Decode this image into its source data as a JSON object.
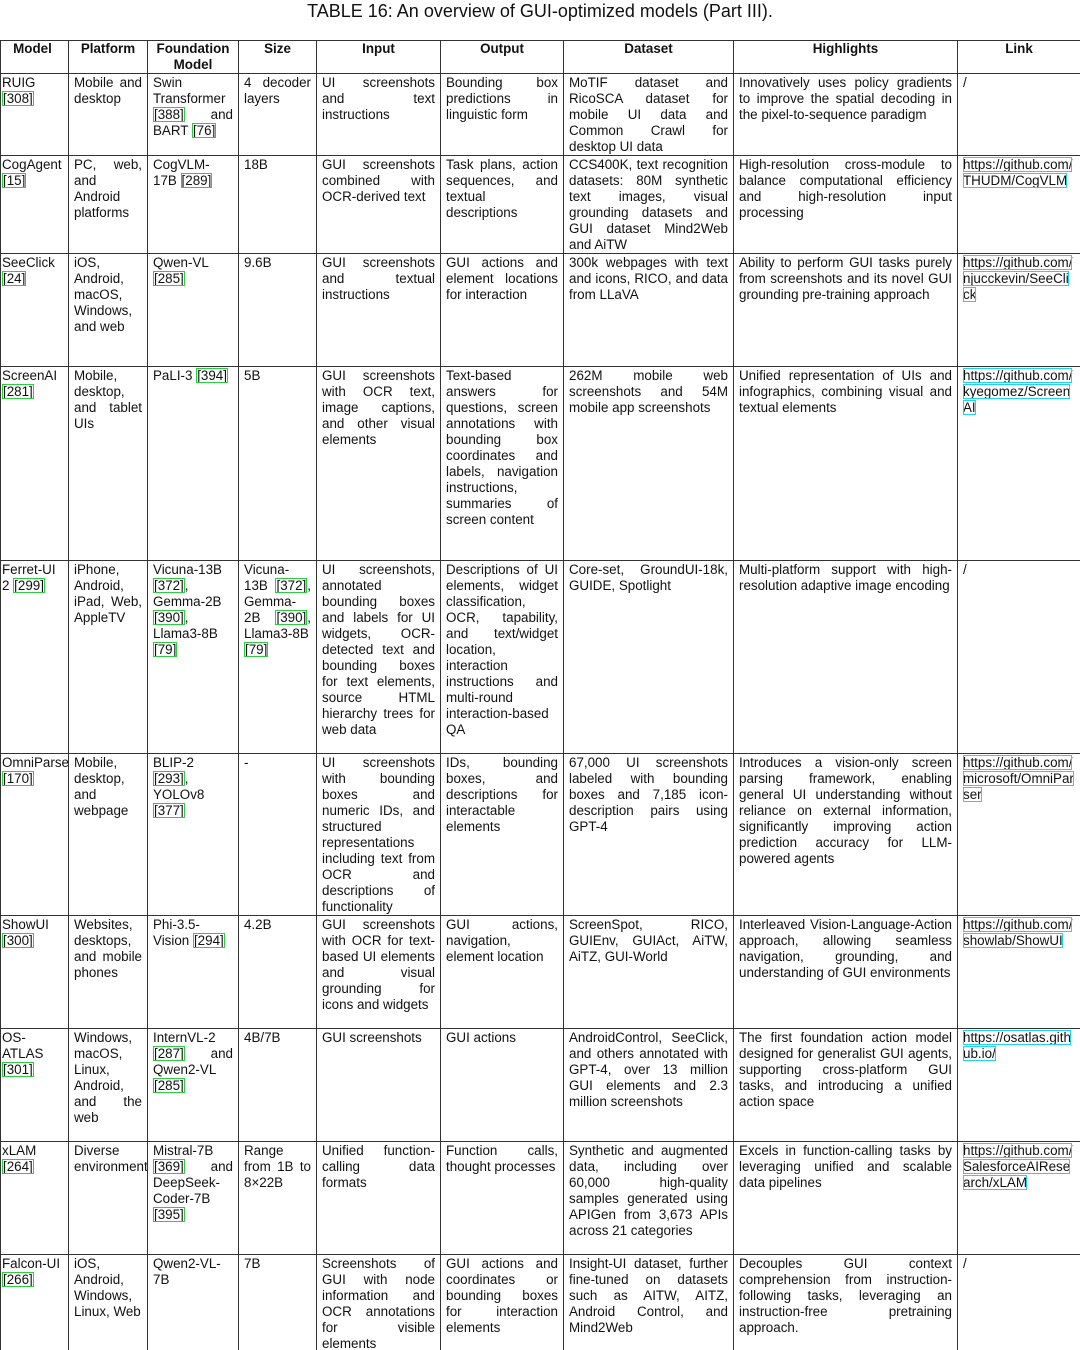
{
  "title": "TABLE 16: An overview of GUI-optimized models (Part III).",
  "table": {
    "columns": [
      "Model",
      "Platform",
      "Foundation Model",
      "Size",
      "Input",
      "Output",
      "Dataset",
      "Highlights",
      "Link"
    ],
    "rows": [
      [
        "RUIG [308]",
        "Mobile and desktop",
        "Swin Transformer [388] and BART [76]",
        "4 decoder layers",
        "UI screenshots and text instructions",
        "Bounding box predictions in linguistic form",
        "MoTIF dataset and RicoSCA dataset for mobile UI data and Common Crawl for desktop UI data",
        "Innovatively uses policy gradients to improve the spatial decoding in the pixel-to-sequence paradigm",
        "/"
      ],
      [
        "CogAgent [15]",
        "PC, web, and Android platforms",
        "CogVLM-17B [289]",
        "18B",
        "GUI screenshots combined with OCR-derived text",
        "Task plans, action sequences, and textual descriptions",
        "CCS400K, text recognition datasets: 80M synthetic text images, visual grounding datasets and GUI dataset Mind2Web and AiTW",
        "High-resolution cross-module to balance computational efficiency and high-resolution input processing",
        "https://github.com/THUDM/CogVLM"
      ],
      [
        "SeeClick [24]",
        "iOS, Android, macOS, Windows, and web",
        "Qwen-VL [285]",
        "9.6B",
        "GUI screenshots and textual instructions",
        "GUI actions and element locations for interaction",
        "300k webpages with text and icons, RICO, and data from LLaVA",
        "Ability to perform GUI tasks purely from screenshots and its novel GUI grounding pre-training approach",
        "https://github.com/njucckevin/SeeClick"
      ],
      [
        "ScreenAI [281]",
        "Mobile, desktop, and tablet UIs",
        "PaLI-3 [394]",
        "5B",
        "GUI screenshots with OCR text, image captions, and other visual elements",
        "Text-based answers for questions, screen annotations with bounding box coordinates and labels, navigation instructions, summaries of screen content",
        "262M mobile web screenshots and 54M mobile app screenshots",
        "Unified representation of UIs and infographics, combining visual and textual elements",
        "https://github.com/kyegomez/ScreenAI"
      ],
      [
        "Ferret-UI 2 [299]",
        "iPhone, Android, iPad, Web, AppleTV",
        "Vicuna-13B [372], Gemma-2B [390], Llama3-8B [79]",
        "Vicuna-13B [372], Gemma-2B [390], Llama3-8B [79]",
        "UI screenshots, annotated bounding boxes and labels for UI widgets, OCR-detected text and bounding boxes for text elements, source HTML hierarchy trees for web data",
        "Descriptions of UI elements, widget classification, OCR, tapability, and text/widget location, interaction instructions and multi-round interaction-based QA",
        "Core-set, GroundUI-18k, GUIDE, Spotlight",
        "Multi-platform support with high-resolution adaptive image encoding",
        "/"
      ],
      [
        "OmniParser [170]",
        "Mobile, desktop, and webpage",
        "BLIP-2 [293], YOLOv8 [377]",
        "-",
        "UI screenshots with bounding boxes and numeric IDs, and structured representations including text from OCR and descriptions of functionality",
        "IDs, bounding boxes, and descriptions for interactable elements",
        "67,000 UI screenshots labeled with bounding boxes and 7,185 icon-description pairs using GPT-4",
        "Introduces a vision-only screen parsing framework, enabling general UI understanding without reliance on external information, significantly improving action prediction accuracy for LLM-powered agents",
        "https://github.com/microsoft/OmniParser"
      ],
      [
        "ShowUI [300]",
        "Websites, desktops, and mobile phones",
        "Phi-3.5-Vision [294]",
        "4.2B",
        "GUI screenshots with OCR for text-based UI elements and visual grounding for icons and widgets",
        "GUI actions, navigation, element location",
        "ScreenSpot, RICO, GUIEnv, GUIAct, AiTW, AiTZ, GUI-World",
        "Interleaved Vision-Language-Action approach, allowing seamless navigation, grounding, and understanding of GUI environments",
        "https://github.com/showlab/ShowUI"
      ],
      [
        "OS-ATLAS [301]",
        "Windows, macOS, Linux, Android, and the web",
        "InternVL-2 [287] and Qwen2-VL [285]",
        "4B/7B",
        "GUI screenshots",
        "GUI actions",
        "AndroidControl, SeeClick, and others annotated with GPT-4, over 13 million GUI elements and 2.3 million screenshots",
        "The first foundation action model designed for generalist GUI agents, supporting cross-platform GUI tasks, and introducing a unified action space",
        "https://osatlas.github.io/"
      ],
      [
        "xLAM [264]",
        "Diverse environments",
        "Mistral-7B [369] and DeepSeek-Coder-7B [395]",
        "Range from 1B to 8×22B",
        "Unified function-calling data formats",
        "Function calls, thought processes",
        "Synthetic and augmented data, including over 60,000 high-quality samples generated using APIGen from 3,673 APIs across 21 categories",
        "Excels in function-calling tasks by leveraging unified and scalable data pipelines",
        "https://github.com/SalesforceAIResearch/xLAM"
      ],
      [
        "Falcon-UI [266]",
        "iOS, Android, Windows, Linux, Web",
        "Qwen2-VL-7B",
        "7B",
        "Screenshots of GUI with node information and OCR annotations for visible elements",
        "GUI actions and coordinates or bounding boxes for interaction elements",
        "Insight-UI dataset, further fine-tuned on datasets such as AITW, AITZ, Android Control, and Mind2Web",
        "Decouples GUI context comprehension from instruction-following tasks, leveraging an instruction-free pretraining approach.",
        "/"
      ]
    ]
  }
}
